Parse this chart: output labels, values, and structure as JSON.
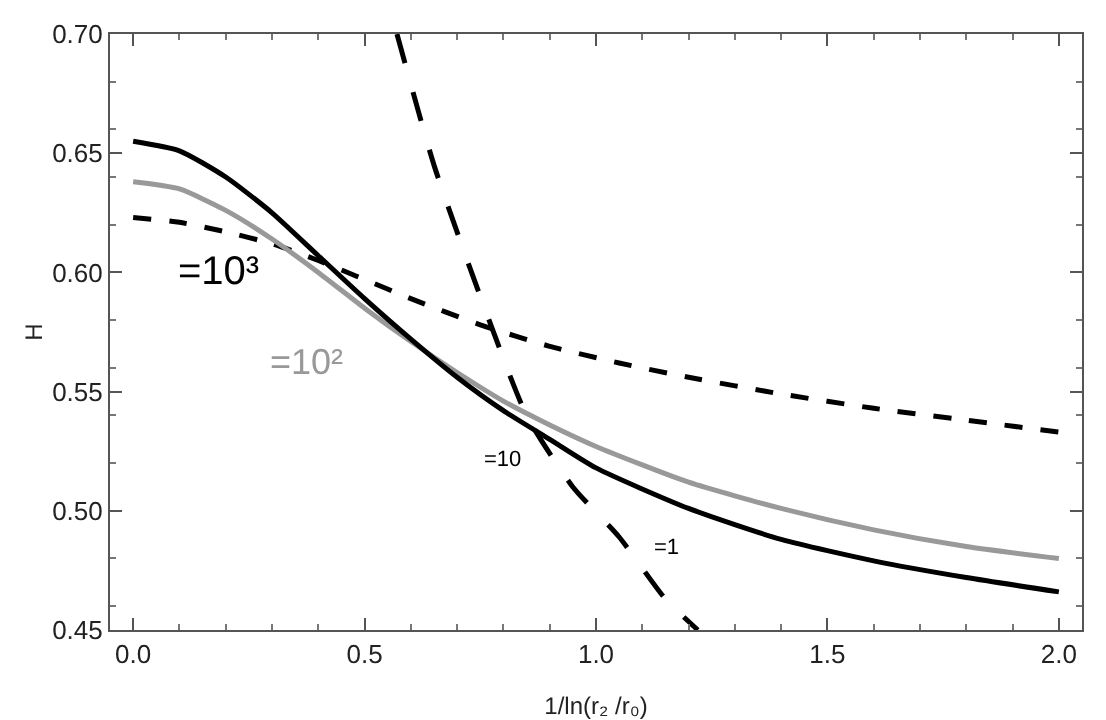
{
  "chart_data": {
    "type": "line",
    "xlabel": "1/ln(r₂ /r₀)",
    "ylabel": "H",
    "xlim": [
      -0.05,
      2.05
    ],
    "ylim": [
      0.45,
      0.7
    ],
    "xticks": [
      {
        "value": 0,
        "label": "0.0"
      },
      0.5,
      {
        "value": 1,
        "label": "1.0"
      },
      1.5,
      {
        "value": 2,
        "label": "2.0"
      }
    ],
    "yticks": [
      {
        "value": 0.45,
        "label": "0.45"
      },
      {
        "value": 0.5,
        "label": "0.50"
      },
      0.55,
      {
        "value": 0.6,
        "label": "0.60"
      },
      0.65,
      {
        "value": 0.7,
        "label": "0.70"
      }
    ],
    "grid": false,
    "legend": false,
    "marker": "none",
    "series": [
      {
        "name": "=10³",
        "color": "#000000",
        "line_style": "dashed",
        "x": [
          0,
          0.1,
          0.2,
          0.3,
          0.4,
          0.5,
          0.6,
          0.75,
          0.9,
          1.05,
          1.2,
          1.4,
          1.6,
          1.8,
          2.0
        ],
        "values": [
          0.623,
          0.621,
          0.617,
          0.612,
          0.605,
          0.597,
          0.589,
          0.578,
          0.569,
          0.562,
          0.556,
          0.549,
          0.543,
          0.538,
          0.533
        ]
      },
      {
        "name": "=10²",
        "color": "#999999",
        "line_style": "solid",
        "x": [
          0,
          0.1,
          0.2,
          0.3,
          0.4,
          0.5,
          0.6,
          0.7,
          0.8,
          0.9,
          1.0,
          1.2,
          1.4,
          1.6,
          1.8,
          2.0
        ],
        "values": [
          0.638,
          0.635,
          0.626,
          0.614,
          0.6,
          0.585,
          0.571,
          0.558,
          0.546,
          0.536,
          0.527,
          0.512,
          0.501,
          0.492,
          0.485,
          0.48
        ]
      },
      {
        "name": "=10",
        "color": "#000000",
        "line_style": "solid",
        "x": [
          0,
          0.1,
          0.2,
          0.3,
          0.4,
          0.5,
          0.6,
          0.7,
          0.8,
          0.9,
          1.0,
          1.2,
          1.4,
          1.6,
          1.8,
          2.0
        ],
        "values": [
          0.655,
          0.651,
          0.64,
          0.625,
          0.607,
          0.589,
          0.572,
          0.556,
          0.542,
          0.53,
          0.518,
          0.501,
          0.488,
          0.479,
          0.472,
          0.466
        ]
      },
      {
        "name": "=1",
        "color": "#000000",
        "line_style": "longdash",
        "x": [
          0.57,
          0.65,
          0.75,
          0.85,
          0.95,
          1.05,
          1.15,
          1.22
        ],
        "values": [
          0.7,
          0.645,
          0.59,
          0.54,
          0.51,
          0.489,
          0.463,
          0.45
        ]
      }
    ]
  }
}
